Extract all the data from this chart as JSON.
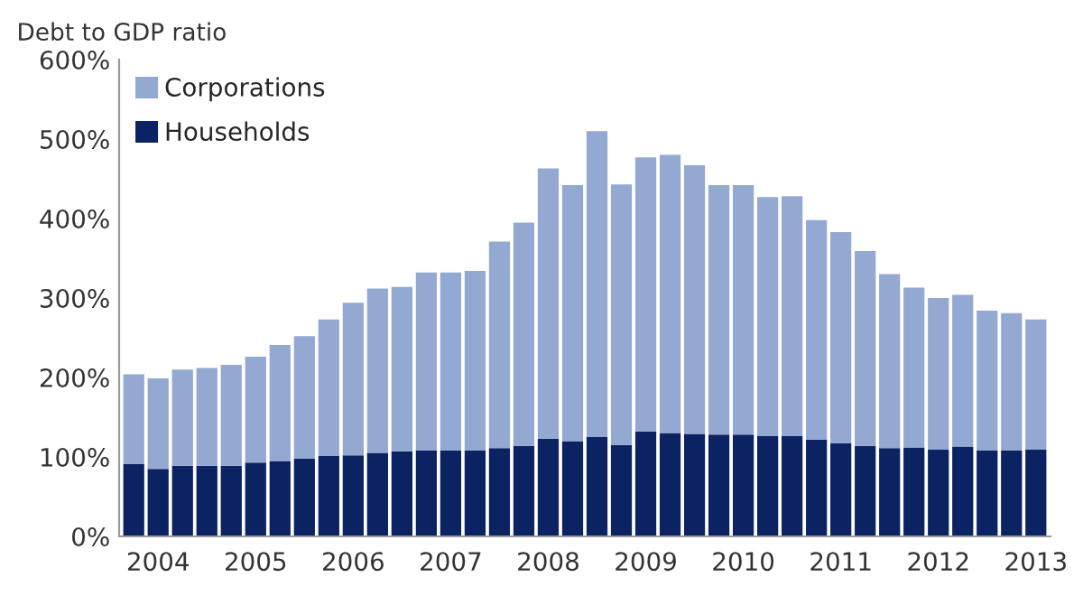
{
  "chart_data": {
    "type": "bar",
    "stacked": true,
    "ylabel": "Debt to GDP ratio",
    "categories": [
      null,
      "2004",
      null,
      null,
      null,
      "2005",
      null,
      null,
      null,
      "2006",
      null,
      null,
      null,
      "2007",
      null,
      null,
      null,
      "2008",
      null,
      null,
      null,
      "2009",
      null,
      null,
      null,
      "2010",
      null,
      null,
      null,
      "2011",
      null,
      null,
      null,
      "2012",
      null,
      null,
      null,
      "2013"
    ],
    "series": [
      {
        "name": "Households",
        "color": "#0b2263",
        "values": [
          91,
          85,
          89,
          89,
          89,
          93,
          95,
          98,
          101,
          102,
          105,
          107,
          108,
          108,
          108,
          111,
          114,
          123,
          120,
          125,
          115,
          132,
          130,
          129,
          128,
          128,
          126,
          126,
          122,
          117,
          114,
          111,
          112,
          109,
          113,
          108,
          108,
          109
        ]
      },
      {
        "name": "Corporations",
        "color": "#93a9d2",
        "values": [
          113,
          114,
          121,
          123,
          127,
          133,
          146,
          154,
          172,
          192,
          207,
          207,
          224,
          224,
          226,
          260,
          281,
          340,
          322,
          385,
          328,
          345,
          350,
          338,
          314,
          314,
          301,
          302,
          276,
          266,
          245,
          219,
          201,
          191,
          191,
          176,
          173,
          164
        ]
      }
    ],
    "ylim": [
      0,
      600
    ],
    "yticks": [
      {
        "value": 0,
        "label": "0%"
      },
      {
        "value": 100,
        "label": "100%"
      },
      {
        "value": 200,
        "label": "200%"
      },
      {
        "value": 300,
        "label": "300%"
      },
      {
        "value": 400,
        "label": "400%"
      },
      {
        "value": 500,
        "label": "500%"
      },
      {
        "value": 600,
        "label": "600%"
      }
    ],
    "legend": "top left",
    "grid": false
  }
}
